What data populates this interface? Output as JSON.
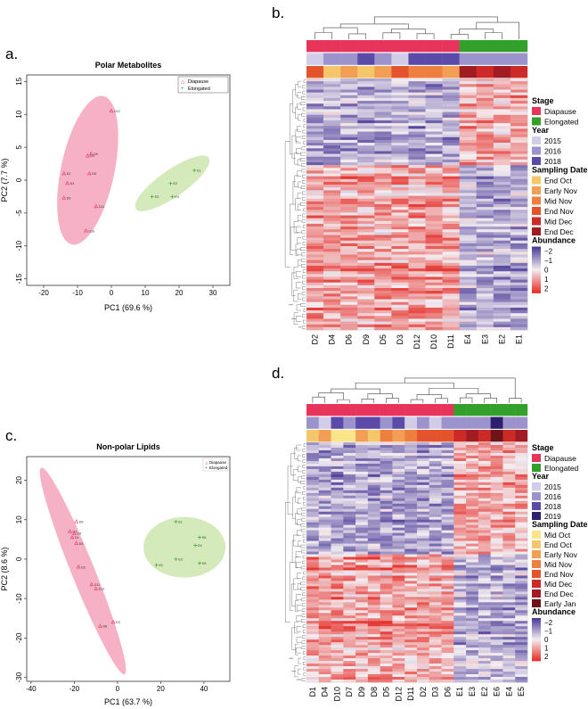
{
  "panel_labels": {
    "a": "a.",
    "b": "b.",
    "c": "c.",
    "d": "d."
  },
  "colors": {
    "diapause": "#e8335a",
    "elongated": "#33a02c",
    "diapause_fill": "#f6a9c0",
    "elongated_fill": "#cfe8b4",
    "hm_low": "#4b3b99",
    "hm_mid": "#f3eef2",
    "hm_high": "#e6302a",
    "years": {
      "2015": "#d3cce8",
      "2016": "#9c92cc",
      "2018": "#5c4aa8",
      "2019": "#2e1f6e"
    },
    "sampling": {
      "Mid Oct": "#fbe58a",
      "End Oct": "#f6c66a",
      "Early Nov": "#f29e54",
      "Mid Nov": "#ee7f3e",
      "End Nov": "#e5532c",
      "Mid Dec": "#cc2a26",
      "End Dec": "#a11c22",
      "Early Jan": "#6e1318"
    }
  },
  "chart_data": [
    {
      "id": "a",
      "type": "scatter",
      "title": "Polar Metabolites",
      "xlabel": "PC1 (69.6 %)",
      "ylabel": "PC2 (7.7 %)",
      "xlim": [
        -25,
        35
      ],
      "ylim": [
        -16,
        16
      ],
      "xticks": [
        -20,
        -10,
        0,
        10,
        20,
        30
      ],
      "yticks": [
        -15,
        -10,
        -5,
        0,
        5,
        10,
        15
      ],
      "legend": [
        "Diapause",
        "Elongated"
      ],
      "series": [
        {
          "name": "Diapause",
          "points": [
            {
              "label": "D12",
              "x": 0,
              "y": 10.5
            },
            {
              "label": "D9",
              "x": -6,
              "y": 4
            },
            {
              "label": "D3",
              "x": -7,
              "y": 3.7
            },
            {
              "label": "D5",
              "x": -6.5,
              "y": 1
            },
            {
              "label": "D2",
              "x": -14,
              "y": 1
            },
            {
              "label": "D4",
              "x": -13,
              "y": -0.5
            },
            {
              "label": "D6",
              "x": -14,
              "y": -2.7
            },
            {
              "label": "D11",
              "x": -4.5,
              "y": -4
            },
            {
              "label": "D10",
              "x": -7.5,
              "y": -7.7
            }
          ]
        },
        {
          "name": "Elongated",
          "points": [
            {
              "label": "E1",
              "x": 24.5,
              "y": 1.5
            },
            {
              "label": "E2",
              "x": 17.5,
              "y": -0.5
            },
            {
              "label": "E3",
              "x": 12,
              "y": -2.5
            },
            {
              "label": "E4",
              "x": 18,
              "y": -2.5
            }
          ]
        }
      ]
    },
    {
      "id": "b",
      "type": "heatmap",
      "columns": [
        "D2",
        "D4",
        "D6",
        "D9",
        "D5",
        "D3",
        "D12",
        "D10",
        "D11",
        "E4",
        "E3",
        "E2",
        "E1"
      ],
      "annotation_stage": [
        "Diapause",
        "Diapause",
        "Diapause",
        "Diapause",
        "Diapause",
        "Diapause",
        "Diapause",
        "Diapause",
        "Diapause",
        "Elongated",
        "Elongated",
        "Elongated",
        "Elongated"
      ],
      "annotation_year": [
        "2015",
        "2016",
        "2016",
        "2018",
        "2016",
        "2015",
        "2018",
        "2018",
        "2018",
        "2016",
        "2016",
        "2016",
        "2016"
      ],
      "annotation_sampling": [
        "End Nov",
        "End Oct",
        "Early Nov",
        "End Oct",
        "Early Nov",
        "End Nov",
        "Mid Nov",
        "Mid Nov",
        "Early Nov",
        "End Dec",
        "Mid Dec",
        "End Dec",
        "Mid Dec"
      ],
      "legend_stage_title": "Stage",
      "legend_stage": [
        "Diapause",
        "Elongated"
      ],
      "legend_year_title": "Year",
      "legend_year": [
        "2015",
        "2016",
        "2018"
      ],
      "legend_sampling_title": "Sampling Date",
      "legend_sampling": [
        "End Oct",
        "Early Nov",
        "Mid Nov",
        "End Nov",
        "Mid Dec",
        "End Dec"
      ],
      "legend_abundance_title": "Abundance",
      "abundance_ticks": [
        "−2",
        "−1",
        "0",
        "1",
        "2"
      ],
      "abundance_range": [
        -2.5,
        2.5
      ]
    },
    {
      "id": "c",
      "type": "scatter",
      "title": "Non-polar Lipids",
      "xlabel": "PC1 (63.7 %)",
      "ylabel": "PC2 (8.6 %)",
      "xlim": [
        -42,
        52
      ],
      "ylim": [
        -31,
        26
      ],
      "xticks": [
        -40,
        -20,
        0,
        20,
        40
      ],
      "yticks": [
        -30,
        -20,
        -10,
        0,
        10,
        20
      ],
      "legend": [
        "Diapause",
        "Elongated"
      ],
      "series": [
        {
          "name": "Diapause",
          "points": [
            {
              "label": "D9",
              "x": -19,
              "y": 9.5
            },
            {
              "label": "D7",
              "x": -22,
              "y": 7
            },
            {
              "label": "D4",
              "x": -20,
              "y": 6.5
            },
            {
              "label": "D1",
              "x": -21,
              "y": 5.5
            },
            {
              "label": "D5",
              "x": -19,
              "y": 4
            },
            {
              "label": "D2",
              "x": -18,
              "y": -2
            },
            {
              "label": "D11",
              "x": -12,
              "y": -6.5
            },
            {
              "label": "D12",
              "x": -10,
              "y": -7.5
            },
            {
              "label": "D8",
              "x": -8,
              "y": -17
            },
            {
              "label": "D3",
              "x": -2,
              "y": -16
            }
          ]
        },
        {
          "name": "Elongated",
          "points": [
            {
              "label": "E1",
              "x": 27,
              "y": 9.5
            },
            {
              "label": "E6",
              "x": 38,
              "y": 5.5
            },
            {
              "label": "E4",
              "x": 36,
              "y": 3.5
            },
            {
              "label": "E3",
              "x": 27,
              "y": 0
            },
            {
              "label": "E5",
              "x": 38,
              "y": -1
            },
            {
              "label": "E2",
              "x": 18,
              "y": -1.5
            }
          ]
        }
      ]
    },
    {
      "id": "d",
      "type": "heatmap",
      "columns": [
        "D1",
        "D4",
        "D10",
        "D7",
        "D9",
        "D8",
        "D5",
        "D12",
        "D11",
        "D2",
        "D3",
        "D6",
        "E1",
        "E3",
        "E2",
        "E6",
        "E4",
        "E5"
      ],
      "annotation_stage": [
        "Diapause",
        "Diapause",
        "Diapause",
        "Diapause",
        "Diapause",
        "Diapause",
        "Diapause",
        "Diapause",
        "Diapause",
        "Diapause",
        "Diapause",
        "Diapause",
        "Elongated",
        "Elongated",
        "Elongated",
        "Elongated",
        "Elongated",
        "Elongated"
      ],
      "annotation_year": [
        "2016",
        "2015",
        "2018",
        "2016",
        "2018",
        "2018",
        "2016",
        "2018",
        "2015",
        "2016",
        "2015",
        "2016",
        "2016",
        "2016",
        "2016",
        "2019",
        "2016",
        "2016"
      ],
      "annotation_sampling": [
        "End Oct",
        "Early Nov",
        "Mid Oct",
        "Mid Oct",
        "Early Nov",
        "End Oct",
        "Mid Nov",
        "Early Nov",
        "Mid Nov",
        "End Nov",
        "End Nov",
        "End Nov",
        "Mid Dec",
        "End Dec",
        "Mid Dec",
        "Early Jan",
        "Mid Dec",
        "End Dec"
      ],
      "legend_stage_title": "Stage",
      "legend_stage": [
        "Diapause",
        "Elongated"
      ],
      "legend_year_title": "Year",
      "legend_year": [
        "2015",
        "2016",
        "2018",
        "2019"
      ],
      "legend_sampling_title": "Sampling Date",
      "legend_sampling": [
        "Mid Oct",
        "End Oct",
        "Early Nov",
        "Mid Nov",
        "End Nov",
        "Mid Dec",
        "End Dec",
        "Early Jan"
      ],
      "legend_abundance_title": "Abundance",
      "abundance_ticks": [
        "−2",
        "−1",
        "0",
        "1",
        "2"
      ],
      "abundance_range": [
        -2.5,
        2.5
      ]
    }
  ]
}
